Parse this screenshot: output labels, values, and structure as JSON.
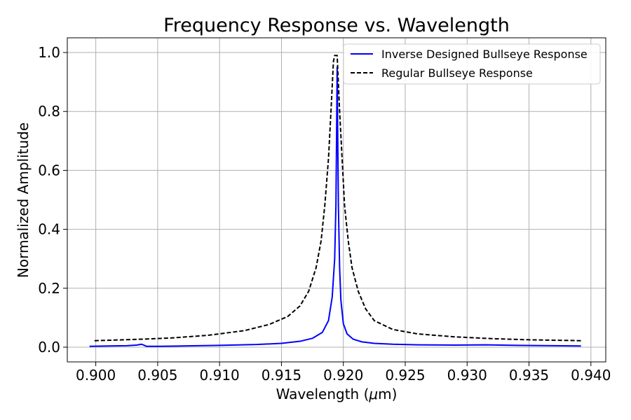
{
  "chart_data": {
    "type": "line",
    "title": "Frequency Response vs. Wavelength",
    "xlabel_main": "Wavelength (",
    "xlabel_mu": "μ",
    "xlabel_unit": "m)",
    "ylabel": "Normalized Amplitude",
    "xlim": [
      0.8977,
      0.9412
    ],
    "ylim": [
      -0.05,
      1.05
    ],
    "xticks": [
      0.9,
      0.905,
      0.91,
      0.915,
      0.92,
      0.925,
      0.93,
      0.935,
      0.94
    ],
    "xtick_labels": [
      "0.900",
      "0.905",
      "0.910",
      "0.915",
      "0.920",
      "0.925",
      "0.930",
      "0.935",
      "0.940"
    ],
    "yticks": [
      0.0,
      0.2,
      0.4,
      0.6,
      0.8,
      1.0
    ],
    "ytick_labels": [
      "0.0",
      "0.2",
      "0.4",
      "0.6",
      "0.8",
      "1.0"
    ],
    "grid": true,
    "legend_position": "top-right",
    "series": [
      {
        "name": "Inverse Designed Bullseye Response",
        "color": "#0000ff",
        "style": "solid",
        "x": [
          0.8995,
          0.901,
          0.9025,
          0.9033,
          0.9037,
          0.9041,
          0.905,
          0.907,
          0.91,
          0.913,
          0.915,
          0.9165,
          0.9175,
          0.9183,
          0.9188,
          0.9191,
          0.9193,
          0.9194,
          0.91945,
          0.9195,
          0.91955,
          0.9196,
          0.9197,
          0.9198,
          0.92,
          0.9203,
          0.9208,
          0.9215,
          0.9225,
          0.924,
          0.926,
          0.929,
          0.9315,
          0.934,
          0.937,
          0.9392
        ],
        "y": [
          0.003,
          0.004,
          0.005,
          0.007,
          0.01,
          0.003,
          0.003,
          0.004,
          0.006,
          0.009,
          0.013,
          0.02,
          0.03,
          0.05,
          0.09,
          0.17,
          0.3,
          0.48,
          0.7,
          0.95,
          0.7,
          0.48,
          0.27,
          0.16,
          0.08,
          0.045,
          0.027,
          0.018,
          0.013,
          0.01,
          0.008,
          0.007,
          0.008,
          0.006,
          0.005,
          0.004
        ]
      },
      {
        "name": "Regular Bullseye Response",
        "color": "#000000",
        "style": "dashed",
        "x": [
          0.8999,
          0.903,
          0.906,
          0.909,
          0.912,
          0.914,
          0.9155,
          0.9165,
          0.9172,
          0.9178,
          0.9182,
          0.9185,
          0.9188,
          0.919,
          0.9192,
          0.9193,
          0.9195,
          0.9197,
          0.9199,
          0.9201,
          0.9204,
          0.9207,
          0.9212,
          0.9218,
          0.9225,
          0.924,
          0.926,
          0.929,
          0.932,
          0.935,
          0.9392
        ],
        "y": [
          0.022,
          0.026,
          0.031,
          0.04,
          0.056,
          0.077,
          0.104,
          0.14,
          0.19,
          0.27,
          0.36,
          0.48,
          0.64,
          0.8,
          0.97,
          0.99,
          0.99,
          0.8,
          0.64,
          0.48,
          0.36,
          0.27,
          0.19,
          0.13,
          0.09,
          0.06,
          0.045,
          0.035,
          0.029,
          0.025,
          0.022
        ]
      }
    ]
  }
}
